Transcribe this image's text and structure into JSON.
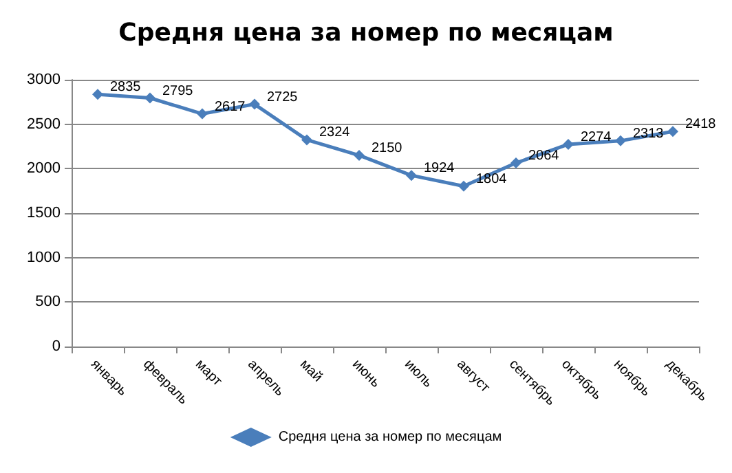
{
  "chart_data": {
    "type": "line",
    "title": "Средня цена за номер по месяцам",
    "categories": [
      "январь",
      "февраль",
      "март",
      "апрель",
      "май",
      "июнь",
      "июль",
      "август",
      "сентябрь",
      "октябрь",
      "ноябрь",
      "декабрь"
    ],
    "series": [
      {
        "name": "Средня цена за номер по месяцам",
        "color": "#4a7ebb",
        "values": [
          2835,
          2795,
          2617,
          2725,
          2324,
          2150,
          1924,
          1804,
          2064,
          2274,
          2313,
          2418
        ]
      }
    ],
    "ylim": [
      0,
      3000
    ],
    "yticks": [
      0,
      500,
      1000,
      1500,
      2000,
      2500,
      3000
    ],
    "grid": "y",
    "legend": "bottom",
    "marker": "diamond",
    "line_style": "solid",
    "data_labels": true
  }
}
